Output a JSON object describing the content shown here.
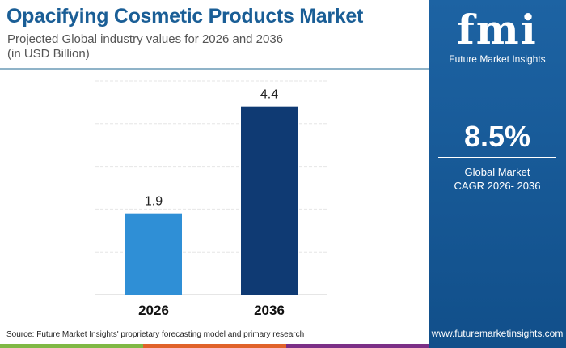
{
  "header": {
    "title": "Opacifying Cosmetic Products Market",
    "subtitle_line1": "Projected Global industry values for 2026 and 2036",
    "subtitle_line2": "(in USD Billion)"
  },
  "brand": {
    "logo_text": "fmi",
    "name": "Future Market Insights",
    "website": "www.futuremarketinsights.com"
  },
  "cagr": {
    "value": "8.5%",
    "label_line1": "Global Market",
    "label_line2": "CAGR 2026- 2036"
  },
  "source": "Source: Future Market Insights' proprietary forecasting model and primary research",
  "colors": {
    "panel": "#1a5e9e",
    "bar_2026": "#2f8fd6",
    "bar_2036": "#0f3a73",
    "strip": [
      "#7fb844",
      "#e0622a",
      "#7b2f86"
    ]
  },
  "chart_data": {
    "type": "bar",
    "categories": [
      "2026",
      "2036"
    ],
    "values": [
      1.9,
      4.4
    ],
    "data_labels": [
      "1.9",
      "4.4"
    ],
    "ylim": [
      0,
      5
    ],
    "grid": true,
    "title": "",
    "xlabel": "",
    "ylabel": ""
  }
}
